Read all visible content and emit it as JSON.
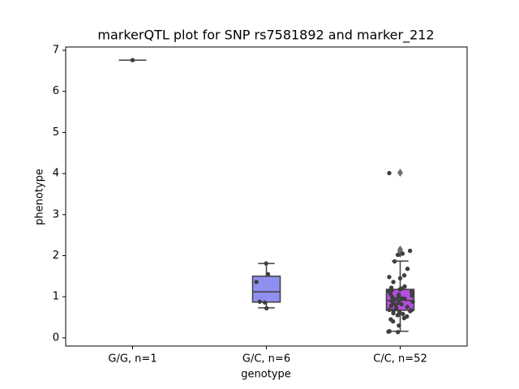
{
  "chart_data": {
    "type": "box",
    "title": "markerQTL plot for SNP rs7581892 and marker_212",
    "xlabel": "genotype",
    "ylabel": "phenotype",
    "categories": [
      "G/G, n=1",
      "G/C, n=6",
      "C/C, n=52"
    ],
    "boxes": [
      {
        "color": "#6d6d6d",
        "whislo": 6.76,
        "q1": 6.76,
        "med": 6.76,
        "q3": 6.76,
        "whishi": 6.76,
        "fliers": [],
        "points": [
          6.76
        ]
      },
      {
        "color": "#8f8ff0",
        "whislo": 0.73,
        "q1": 0.87,
        "med": 1.12,
        "q3": 1.5,
        "whishi": 1.81,
        "fliers": [],
        "points": [
          1.81,
          1.55,
          1.36,
          0.88,
          0.86,
          0.72
        ]
      },
      {
        "color": "#b44fe0",
        "whislo": 0.16,
        "q1": 0.67,
        "med": 0.91,
        "q3": 1.18,
        "whishi": 1.87,
        "fliers": [
          4.02,
          2.15,
          2.1,
          2.05
        ],
        "points": [
          4.01,
          2.12,
          2.05,
          2.02,
          1.86,
          1.68,
          1.52,
          1.48,
          1.45,
          1.36,
          1.25,
          1.22,
          1.2,
          1.18,
          1.16,
          1.14,
          1.12,
          1.1,
          1.08,
          1.05,
          1.03,
          1.0,
          0.98,
          0.96,
          0.95,
          0.93,
          0.9,
          0.88,
          0.86,
          0.84,
          0.82,
          0.8,
          0.78,
          0.75,
          0.72,
          0.7,
          0.68,
          0.67,
          0.66,
          0.65,
          0.63,
          0.6,
          0.58,
          0.55,
          0.52,
          0.48,
          0.45,
          0.4,
          0.3,
          0.16,
          0.15,
          0.14
        ]
      }
    ],
    "ylim": [
      -0.2,
      7.08
    ],
    "yticks": [
      0,
      1,
      2,
      3,
      4,
      5,
      6,
      7
    ]
  }
}
